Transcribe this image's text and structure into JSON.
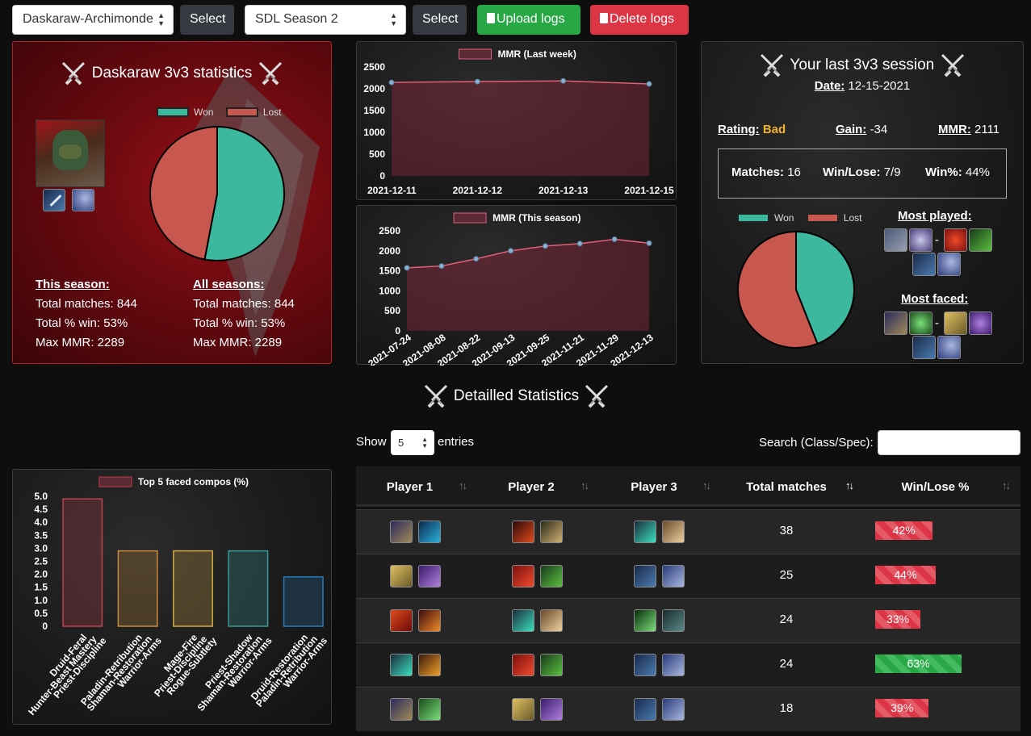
{
  "toolbar": {
    "character_select": "Daskaraw-Archimonde",
    "season_select": "SDL Season 2",
    "select_label": "Select",
    "upload_label": "Upload logs",
    "delete_label": "Delete logs",
    "upload_icon": "clipboard-icon",
    "delete_icon": "clipboard-icon"
  },
  "stats_panel": {
    "title": "Daskaraw 3v3 statistics",
    "legend_won": "Won",
    "legend_lost": "Lost",
    "this_season": {
      "heading": "This season:",
      "total_matches": "Total matches: 844",
      "win_pct": "Total % win: 53%",
      "max_mmr": "Max MMR: 2289"
    },
    "all_seasons": {
      "heading": "All seasons:",
      "total_matches": "Total matches: 844",
      "win_pct": "Total % win: 53%",
      "max_mmr": "Max MMR: 2289"
    },
    "pie": {
      "won_pct": 53,
      "lost_pct": 47
    }
  },
  "session_panel": {
    "title": "Your last 3v3 session",
    "date_label": "Date:",
    "date_value": "12-15-2021",
    "rating_label": "Rating:",
    "rating_value": "Bad",
    "gain_label": "Gain:",
    "gain_value": "-34",
    "mmr_label": "MMR:",
    "mmr_value": "2111",
    "matches_label": "Matches:",
    "matches_value": "16",
    "winlose_label": "Win/Lose:",
    "winlose_value": "7/9",
    "winpct_label": "Win%:",
    "winpct_value": "44%",
    "legend_won": "Won",
    "legend_lost": "Lost",
    "most_played": "Most played:",
    "most_faced": "Most faced:",
    "dash": "-",
    "pie": {
      "won_pct": 44,
      "lost_pct": 56
    }
  },
  "detail": {
    "title": "Detailled Statistics",
    "show_label": "Show",
    "entries_label": "entries",
    "page_length": "5",
    "search_label": "Search (Class/Spec):",
    "columns": [
      "Player 1",
      "Player 2",
      "Player 3",
      "Total matches",
      "Win/Lose %"
    ],
    "rows": [
      {
        "matches": "38",
        "winpct": "42%",
        "win": 42
      },
      {
        "matches": "25",
        "winpct": "44%",
        "win": 44
      },
      {
        "matches": "24",
        "winpct": "33%",
        "win": 33
      },
      {
        "matches": "24",
        "winpct": "63%",
        "win": 63
      },
      {
        "matches": "18",
        "winpct": "39%",
        "win": 39
      }
    ]
  },
  "colors": {
    "won": "#3bb89e",
    "lost": "#c8584f",
    "mmr_line": "#e0607a",
    "bad": "#f0b429"
  },
  "chart_data": [
    {
      "type": "line",
      "title": "MMR (Last week)",
      "x": [
        "2021-12-11",
        "2021-12-12",
        "2021-12-13",
        "2021-12-15"
      ],
      "values": [
        2145,
        2165,
        2180,
        2111
      ],
      "ylim": [
        0,
        2500
      ],
      "yticks": [
        0,
        500,
        1000,
        1500,
        2000,
        2500
      ],
      "series": [
        {
          "name": "MMR (Last week)",
          "values": [
            2145,
            2165,
            2180,
            2111
          ]
        }
      ]
    },
    {
      "type": "line",
      "title": "MMR (This season)",
      "x": [
        "2021-07-24",
        "2021-08-08",
        "2021-08-22",
        "2021-09-13",
        "2021-09-25",
        "2021-11-21",
        "2021-11-29",
        "2021-12-13"
      ],
      "values": [
        1575,
        1620,
        1800,
        2000,
        2120,
        2180,
        2289,
        2190
      ],
      "ylim": [
        0,
        2500
      ],
      "yticks": [
        0,
        500,
        1000,
        1500,
        2000,
        2500
      ],
      "series": [
        {
          "name": "MMR (This season)",
          "values": [
            1575,
            1620,
            1800,
            2000,
            2120,
            2180,
            2289,
            2190
          ]
        }
      ]
    },
    {
      "type": "bar",
      "title": "Top 5 faced compos (%)",
      "categories": [
        [
          "Druid-Feral",
          "Hunter-Beast Mastery",
          "Priest-Discipline"
        ],
        [
          "Paladin-Retribution",
          "Shaman-Restoration",
          "Warrior-Arms"
        ],
        [
          "Mage-Fire",
          "Priest-Discipline",
          "Rogue-Subtlety"
        ],
        [
          "Priest-Shadow",
          "Shaman-Restoration",
          "Warrior-Arms"
        ],
        [
          "Druid-Restoration",
          "Paladin-Retribution",
          "Warrior-Arms"
        ]
      ],
      "values": [
        4.9,
        2.9,
        2.9,
        2.9,
        1.9
      ],
      "colors": [
        "#c0404f",
        "#c88a3a",
        "#d4a843",
        "#3a9a9a",
        "#2a7ab8"
      ],
      "ylim": [
        0,
        5
      ],
      "yticks": [
        0,
        0.5,
        1,
        1.5,
        2,
        2.5,
        3,
        3.5,
        4,
        4.5,
        5
      ],
      "series": [
        {
          "name": "Top 5 faced compos (%)",
          "values": [
            4.9,
            2.9,
            2.9,
            2.9,
            1.9
          ]
        }
      ]
    },
    {
      "type": "pie",
      "title": "",
      "labels": [
        "Won",
        "Lost"
      ],
      "values": [
        53,
        47
      ]
    },
    {
      "type": "pie",
      "title": "",
      "labels": [
        "Won",
        "Lost"
      ],
      "values": [
        44,
        56
      ]
    }
  ]
}
